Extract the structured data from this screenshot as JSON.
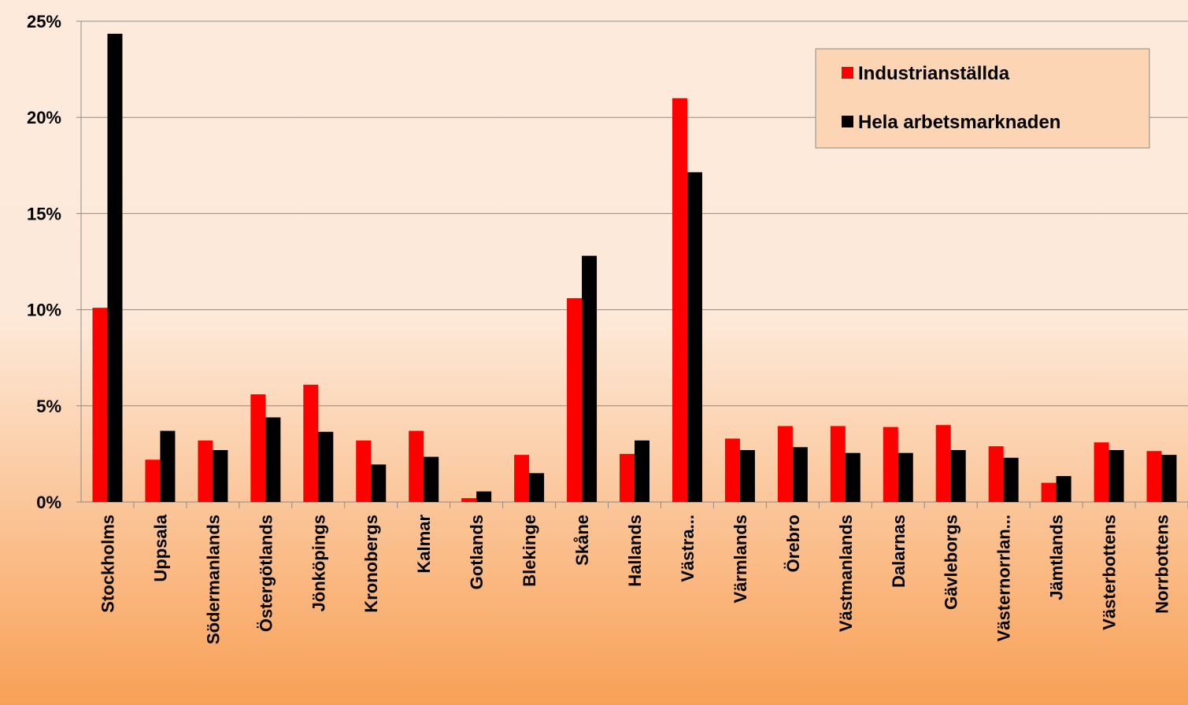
{
  "chart_data": {
    "type": "bar",
    "categories": [
      "Stockholms",
      "Uppsala",
      "Södermanlands",
      "Östergötlands",
      "Jönköpings",
      "Kronobergs",
      "Kalmar",
      "Gotlands",
      "Blekinge",
      "Skåne",
      "Hallands",
      "Västra...",
      "Värmlands",
      "Örebro",
      "Västmanlands",
      "Dalarnas",
      "Gävleborgs",
      "Västernorrlan...",
      "Jämtlands",
      "Västerbottens",
      "Norrbottens"
    ],
    "series": [
      {
        "name": "Industrianställda",
        "color": "#ff0000",
        "values": [
          10.1,
          2.2,
          3.2,
          5.6,
          6.1,
          3.2,
          3.7,
          0.2,
          2.45,
          10.6,
          2.5,
          21.0,
          3.3,
          3.95,
          3.95,
          3.9,
          4.0,
          2.9,
          1.0,
          3.1,
          2.65
        ]
      },
      {
        "name": "Hela arbetsmarknaden",
        "color": "#000000",
        "values": [
          24.35,
          3.7,
          2.7,
          4.4,
          3.65,
          1.95,
          2.35,
          0.55,
          1.5,
          12.8,
          3.2,
          17.15,
          2.7,
          2.85,
          2.55,
          2.55,
          2.7,
          2.3,
          1.35,
          2.7,
          2.45
        ]
      }
    ],
    "ylim": [
      0,
      25
    ],
    "yticks": [
      {
        "value": 0,
        "label": "0%"
      },
      {
        "value": 5,
        "label": "5%"
      },
      {
        "value": 10,
        "label": "10%"
      },
      {
        "value": 15,
        "label": "15%"
      },
      {
        "value": 20,
        "label": "20%"
      },
      {
        "value": 25,
        "label": "25%"
      }
    ],
    "grid": true,
    "legend": "top-right"
  }
}
